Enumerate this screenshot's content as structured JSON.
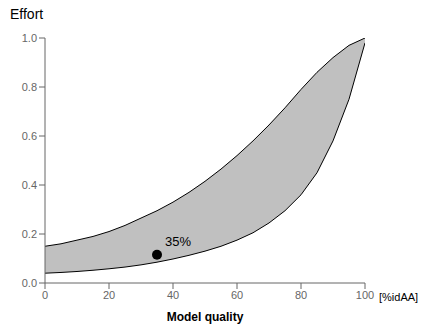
{
  "chart_data": {
    "type": "area",
    "title": "Effort",
    "xlabel": "Model quality",
    "annotations": [
      "[%idAA]"
    ],
    "xlim": [
      0,
      100
    ],
    "ylim": [
      0.0,
      1.0
    ],
    "xticks": [
      0,
      20,
      40,
      60,
      80,
      100
    ],
    "yticks": [
      {
        "value": 0.0,
        "label": "0.0"
      },
      0.2,
      0.4,
      0.6,
      0.8,
      {
        "value": 1.0,
        "label": "1.0"
      }
    ],
    "x": [
      0,
      5,
      10,
      15,
      20,
      25,
      30,
      35,
      40,
      45,
      50,
      55,
      60,
      65,
      70,
      75,
      80,
      85,
      90,
      95,
      100
    ],
    "series": [
      {
        "values": [
          0.15,
          0.16,
          0.175,
          0.19,
          0.21,
          0.235,
          0.265,
          0.295,
          0.33,
          0.37,
          0.415,
          0.465,
          0.52,
          0.58,
          0.645,
          0.715,
          0.79,
          0.86,
          0.92,
          0.97,
          1.0
        ],
        "color": "#000000"
      },
      {
        "values": [
          0.04,
          0.043,
          0.047,
          0.052,
          0.058,
          0.065,
          0.074,
          0.085,
          0.098,
          0.113,
          0.13,
          0.15,
          0.175,
          0.205,
          0.245,
          0.295,
          0.36,
          0.45,
          0.58,
          0.75,
          0.98
        ],
        "color": "#000000"
      }
    ],
    "color": "#c0c0c0",
    "points": [
      {
        "x": 35,
        "y": 0.115,
        "label": "35%",
        "color": "#000000"
      }
    ]
  }
}
